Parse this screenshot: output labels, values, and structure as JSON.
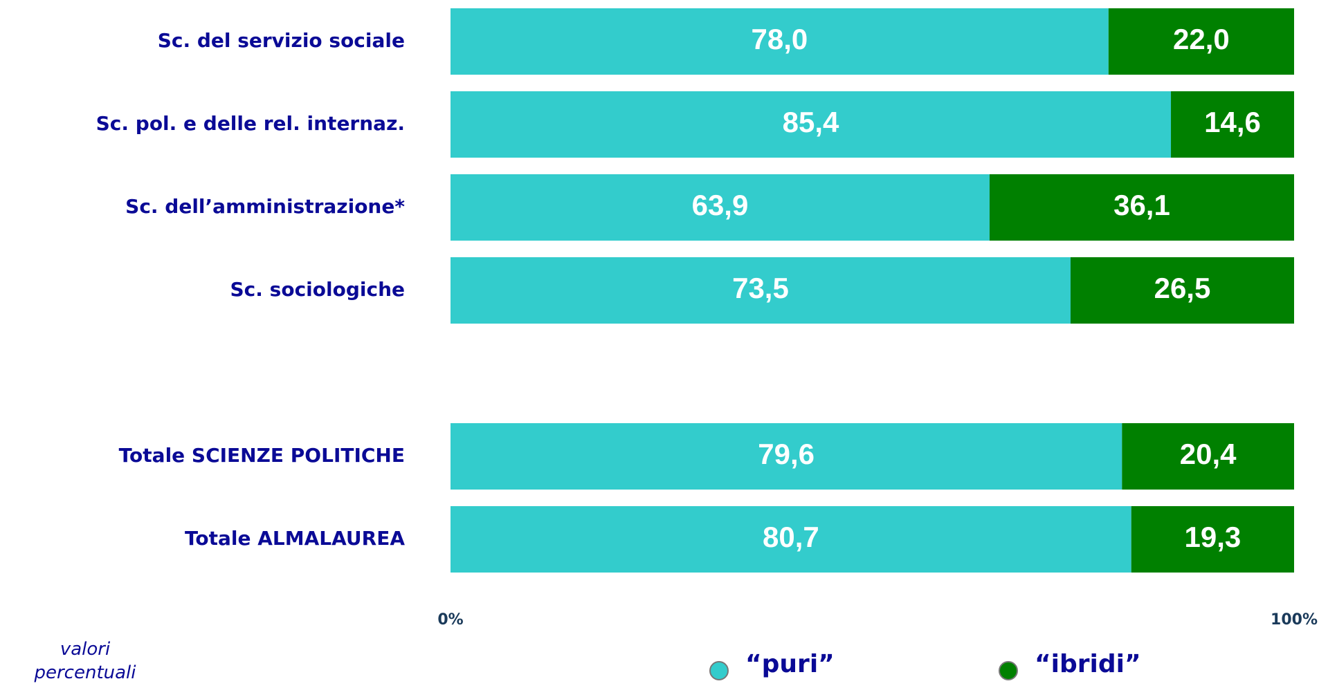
{
  "chart_data": {
    "type": "bar",
    "orientation": "horizontal",
    "stacked": true,
    "categories": [
      "Sc. del servizio sociale",
      "Sc. pol. e delle rel. internaz.",
      "Sc. dell’amministrazione*",
      "Sc. sociologiche",
      "Totale SCIENZE POLITICHE",
      "Totale ALMALAUREA"
    ],
    "series": [
      {
        "name": "“puri”",
        "color": "#33cccc",
        "values": [
          78.0,
          85.4,
          63.9,
          73.5,
          79.6,
          80.7
        ],
        "value_labels": [
          "78,0",
          "85,4",
          "63,9",
          "73,5",
          "79,6",
          "80,7"
        ]
      },
      {
        "name": "“ibridi”",
        "color": "#008000",
        "values": [
          22.0,
          14.6,
          36.1,
          26.5,
          20.4,
          19.3
        ],
        "value_labels": [
          "22,0",
          "14,6",
          "36,1",
          "26,5",
          "20,4",
          "19,3"
        ]
      }
    ],
    "xlim": [
      0,
      100
    ],
    "xticks": [
      {
        "value": 0,
        "label": "0%"
      },
      {
        "value": 100,
        "label": "100%"
      }
    ],
    "annotation": "valori percentuali",
    "legend": "bottom"
  }
}
